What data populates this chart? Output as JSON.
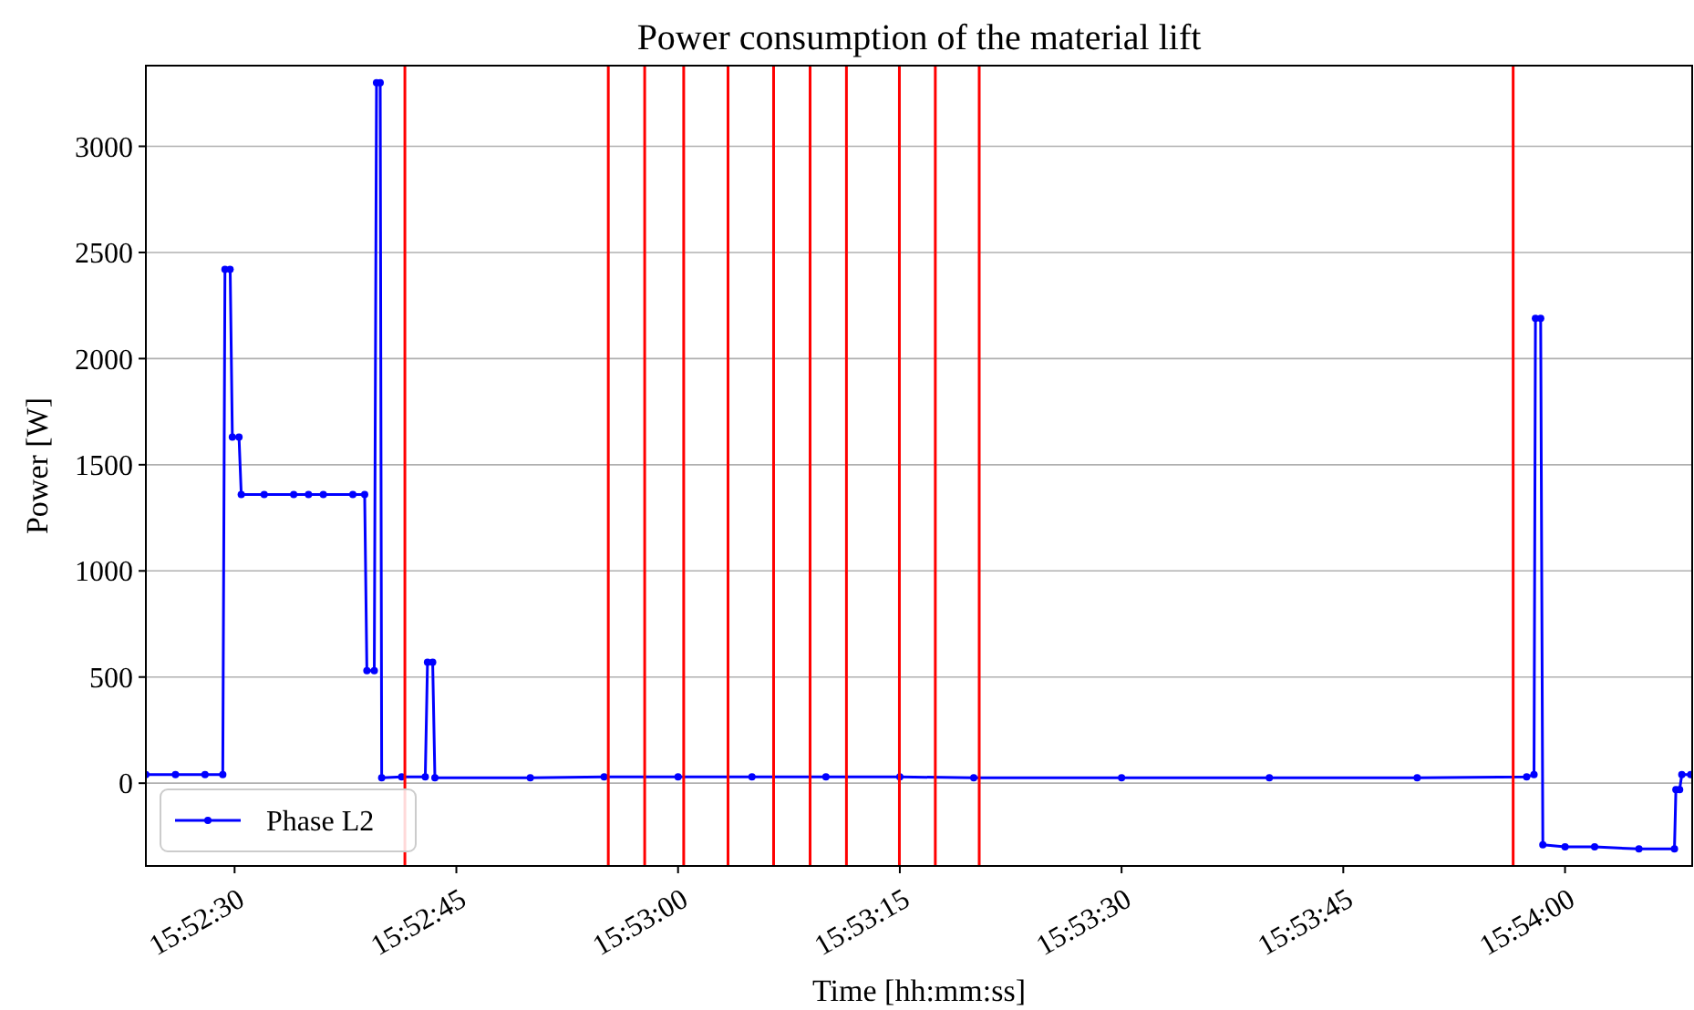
{
  "chart_data": {
    "type": "line",
    "title": "Power consumption of the material lift",
    "xlabel": "Time [hh:mm:ss]",
    "ylabel": "Power [W]",
    "xlim": [
      15.873333,
      15.902389
    ],
    "ylim": [
      -390,
      3380
    ],
    "xticks": [
      {
        "value": 15.875,
        "label": "15:52:30"
      },
      {
        "value": 15.879167,
        "label": "15:52:45"
      },
      {
        "value": 15.883333,
        "label": "15:53:00"
      },
      {
        "value": 15.8875,
        "label": "15:53:15"
      },
      {
        "value": 15.891667,
        "label": "15:53:30"
      },
      {
        "value": 15.895833,
        "label": "15:53:45"
      },
      {
        "value": 15.9,
        "label": "15:54:00"
      }
    ],
    "yticks": [
      0,
      500,
      1000,
      1500,
      2000,
      2500,
      3000
    ],
    "grid": "y",
    "legend": "bottom left",
    "marker": "circle",
    "line_style": "solid",
    "series": [
      {
        "name": "Phase L2",
        "color": "#0000ff",
        "x": [
          15.873333,
          15.873889,
          15.874444,
          15.874778,
          15.874819,
          15.874917,
          15.874958,
          15.875083,
          15.875125,
          15.875556,
          15.876111,
          15.876389,
          15.876667,
          15.877222,
          15.877444,
          15.877486,
          15.877625,
          15.877667,
          15.877736,
          15.877764,
          15.878139,
          15.878583,
          15.878625,
          15.878722,
          15.878764,
          15.880556,
          15.881944,
          15.883333,
          15.884722,
          15.886111,
          15.8875,
          15.888889,
          15.891667,
          15.894444,
          15.897222,
          15.899278,
          15.899417,
          15.899444,
          15.899542,
          15.899583,
          15.9,
          15.900556,
          15.901389,
          15.902056,
          15.902083,
          15.902153,
          15.902194,
          15.902361
        ],
        "values": [
          40,
          40,
          40,
          40,
          2420,
          2420,
          1630,
          1630,
          1360,
          1360,
          1360,
          1360,
          1360,
          1360,
          1360,
          530,
          530,
          3300,
          3300,
          25,
          30,
          30,
          570,
          570,
          25,
          25,
          30,
          30,
          30,
          30,
          30,
          25,
          25,
          25,
          25,
          30,
          40,
          2190,
          2190,
          -290,
          -300,
          -300,
          -310,
          -310,
          -30,
          -30,
          40,
          40
        ]
      }
    ],
    "ref_lines": [
      {
        "axis": "x",
        "value": 15.8782,
        "color": "#ff0000"
      },
      {
        "axis": "x",
        "value": 15.882022,
        "color": "#ff0000"
      },
      {
        "axis": "x",
        "value": 15.882706,
        "color": "#ff0000"
      },
      {
        "axis": "x",
        "value": 15.883439,
        "color": "#ff0000"
      },
      {
        "axis": "x",
        "value": 15.884272,
        "color": "#ff0000"
      },
      {
        "axis": "x",
        "value": 15.885128,
        "color": "#ff0000"
      },
      {
        "axis": "x",
        "value": 15.885814,
        "color": "#ff0000"
      },
      {
        "axis": "x",
        "value": 15.886497,
        "color": "#ff0000"
      },
      {
        "axis": "x",
        "value": 15.887492,
        "color": "#ff0000"
      },
      {
        "axis": "x",
        "value": 15.888167,
        "color": "#ff0000"
      },
      {
        "axis": "x",
        "value": 15.888992,
        "color": "#ff0000"
      },
      {
        "axis": "x",
        "value": 15.899025,
        "color": "#ff0000"
      }
    ]
  }
}
